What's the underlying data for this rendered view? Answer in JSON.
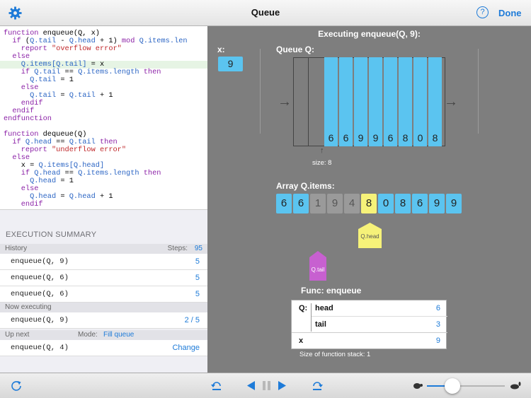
{
  "header": {
    "title": "Queue",
    "help_label": "?",
    "done_label": "Done"
  },
  "code": [
    [
      [
        "k",
        "function "
      ],
      [
        "",
        "enqueue(Q, x)"
      ]
    ],
    [
      [
        "",
        "  "
      ],
      [
        "k",
        "if "
      ],
      [
        "",
        "("
      ],
      [
        "v",
        "Q.tail"
      ],
      [
        "",
        " - "
      ],
      [
        "v",
        "Q.head"
      ],
      [
        "",
        " + 1) "
      ],
      [
        "k",
        "mod "
      ],
      [
        "v",
        "Q.items.len"
      ]
    ],
    [
      [
        "",
        "    "
      ],
      [
        "k",
        "report "
      ],
      [
        "s",
        "\"overflow error\""
      ]
    ],
    [
      [
        "",
        "  "
      ],
      [
        "k",
        "else"
      ]
    ],
    [
      [
        "",
        "    "
      ],
      [
        "v",
        "Q.items[Q.tail]"
      ],
      [
        "",
        " = x"
      ]
    ],
    [
      [
        "",
        "    "
      ],
      [
        "k",
        "if "
      ],
      [
        "v",
        "Q.tail"
      ],
      [
        "",
        " == "
      ],
      [
        "v",
        "Q.items.length"
      ],
      [
        "k",
        " then"
      ]
    ],
    [
      [
        "",
        "      "
      ],
      [
        "v",
        "Q.tail"
      ],
      [
        "",
        " = 1"
      ]
    ],
    [
      [
        "",
        "    "
      ],
      [
        "k",
        "else"
      ]
    ],
    [
      [
        "",
        "      "
      ],
      [
        "v",
        "Q.tail"
      ],
      [
        "",
        " = "
      ],
      [
        "v",
        "Q.tail"
      ],
      [
        "",
        " + 1"
      ]
    ],
    [
      [
        "",
        "    "
      ],
      [
        "k",
        "endif"
      ]
    ],
    [
      [
        "",
        "  "
      ],
      [
        "k",
        "endif"
      ]
    ],
    [
      [
        "k",
        "endfunction"
      ]
    ],
    [
      [
        "",
        ""
      ]
    ],
    [
      [
        "k",
        "function "
      ],
      [
        "",
        "dequeue(Q)"
      ]
    ],
    [
      [
        "",
        "  "
      ],
      [
        "k",
        "if "
      ],
      [
        "v",
        "Q.head"
      ],
      [
        "",
        " == "
      ],
      [
        "v",
        "Q.tail"
      ],
      [
        "k",
        " then"
      ]
    ],
    [
      [
        "",
        "    "
      ],
      [
        "k",
        "report "
      ],
      [
        "s",
        "\"underflow error\""
      ]
    ],
    [
      [
        "",
        "  "
      ],
      [
        "k",
        "else"
      ]
    ],
    [
      [
        "",
        "    x = "
      ],
      [
        "v",
        "Q.items[Q.head]"
      ]
    ],
    [
      [
        "",
        "    "
      ],
      [
        "k",
        "if "
      ],
      [
        "v",
        "Q.head"
      ],
      [
        "",
        " == "
      ],
      [
        "v",
        "Q.items.length"
      ],
      [
        "k",
        " then"
      ]
    ],
    [
      [
        "",
        "      "
      ],
      [
        "v",
        "Q.head"
      ],
      [
        "",
        " = 1"
      ]
    ],
    [
      [
        "",
        "    "
      ],
      [
        "k",
        "else"
      ]
    ],
    [
      [
        "",
        "      "
      ],
      [
        "v",
        "Q.head"
      ],
      [
        "",
        " = "
      ],
      [
        "v",
        "Q.head"
      ],
      [
        "",
        " + 1"
      ]
    ],
    [
      [
        "",
        "    "
      ],
      [
        "k",
        "endif"
      ]
    ]
  ],
  "summary": {
    "title": "EXECUTION SUMMARY",
    "history_label": "History",
    "steps_label": "Steps:",
    "steps": "95",
    "history": [
      {
        "call": "enqueue(Q, 9)",
        "steps": "5"
      },
      {
        "call": "enqueue(Q, 6)",
        "steps": "5"
      },
      {
        "call": "enqueue(Q, 6)",
        "steps": "5"
      }
    ],
    "now_label": "Now executing",
    "now_call": "enqueue(Q, 9)",
    "now_progress": "2 / 5",
    "next_label": "Up next",
    "mode_label": "Mode:",
    "mode_value": "Fill queue",
    "next_call": "enqueue(Q, 4)",
    "change_label": "Change"
  },
  "viz": {
    "title": "Executing enqueue(Q, 9):",
    "x_label": "x:",
    "x_value": "9",
    "queue_label": "Queue Q:",
    "queue_values": [
      "6",
      "6",
      "9",
      "9",
      "6",
      "8",
      "0",
      "8"
    ],
    "size_label": "size: 8",
    "array_label": "Array Q.items:",
    "array_values": [
      "6",
      "6",
      "1",
      "9",
      "4",
      "8",
      "0",
      "8",
      "6",
      "9",
      "9"
    ],
    "head_label": "Q.head",
    "tail_label": "Q.tail",
    "func_title": "Func: enqueue",
    "func": {
      "q": "Q:",
      "head": "head",
      "head_val": "6",
      "tail": "tail",
      "tail_val": "3",
      "x": "x",
      "x_val": "9"
    },
    "stack_text": "Size of function stack: 1"
  },
  "colors": {
    "accent": "#1e7bd8",
    "cell": "#5bc4f0",
    "head": "#f6f279",
    "tail": "#c760d0"
  }
}
